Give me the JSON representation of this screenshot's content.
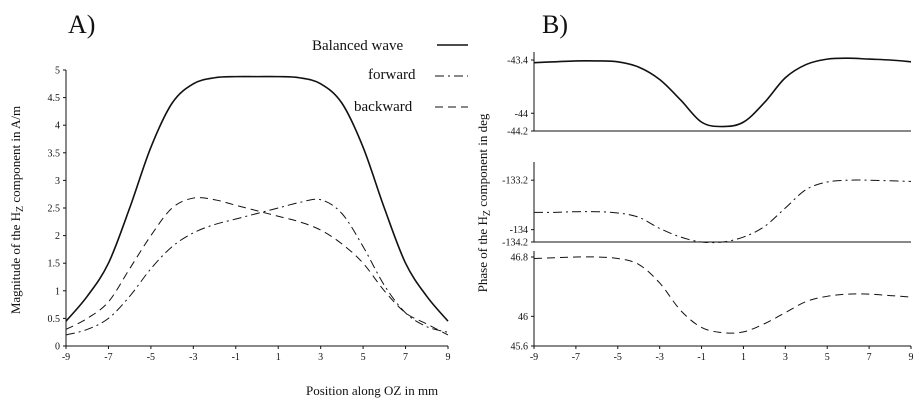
{
  "panel_labels": {
    "a": "A)",
    "b": "B)"
  },
  "legend": {
    "balanced": "Balanced wave",
    "forward": "forward",
    "backward": "backward"
  },
  "colors": {
    "ink": "#111111",
    "background": "#ffffff"
  },
  "chart_data": [
    {
      "type": "line",
      "panel": "A)",
      "title": "",
      "xlabel": "Position along OZ in mm",
      "ylabel": "Magnitude of the H_Z component in A/m",
      "ylabel_parts": {
        "pre": "Magnitude of the H",
        "sub": "Z",
        "post": " component in A/m"
      },
      "xlim": [
        -9,
        9
      ],
      "ylim": [
        0,
        5
      ],
      "xticks": [
        -9,
        -7,
        -5,
        -3,
        -1,
        1,
        3,
        5,
        7,
        9
      ],
      "yticks": [
        0,
        0.5,
        1,
        1.5,
        2,
        2.5,
        3,
        3.5,
        4,
        4.5,
        5
      ],
      "legend_position": "top-right",
      "series": [
        {
          "name": "Balanced wave",
          "style": "solid",
          "x": [
            -9,
            -8,
            -7,
            -6,
            -5,
            -4,
            -3,
            -2,
            -1,
            0,
            1,
            2,
            3,
            4,
            5,
            6,
            7,
            8,
            9
          ],
          "y": [
            0.45,
            0.9,
            1.5,
            2.5,
            3.6,
            4.4,
            4.75,
            4.86,
            4.88,
            4.88,
            4.88,
            4.86,
            4.75,
            4.4,
            3.6,
            2.5,
            1.5,
            0.9,
            0.45
          ]
        },
        {
          "name": "forward",
          "style": "dashdot",
          "x": [
            -9,
            -8,
            -7,
            -6,
            -5,
            -4,
            -3,
            -2,
            -1,
            0,
            1,
            2,
            3,
            4,
            5,
            6,
            7,
            8,
            9
          ],
          "y": [
            0.2,
            0.3,
            0.5,
            0.9,
            1.4,
            1.8,
            2.05,
            2.2,
            2.3,
            2.4,
            2.5,
            2.6,
            2.65,
            2.4,
            1.8,
            1.1,
            0.6,
            0.35,
            0.25
          ]
        },
        {
          "name": "backward",
          "style": "dashed",
          "x": [
            -9,
            -8,
            -7,
            -6,
            -5,
            -4,
            -3,
            -2,
            -1,
            0,
            1,
            2,
            3,
            4,
            5,
            6,
            7,
            8,
            9
          ],
          "y": [
            0.3,
            0.5,
            0.8,
            1.4,
            2.0,
            2.5,
            2.68,
            2.65,
            2.55,
            2.45,
            2.35,
            2.25,
            2.1,
            1.85,
            1.5,
            1.0,
            0.6,
            0.4,
            0.2
          ]
        }
      ]
    },
    {
      "type": "line",
      "panel": "B)",
      "subplot": "balanced",
      "xlim": [
        -9,
        9
      ],
      "ylim": [
        -44.2,
        -43.4
      ],
      "yticks": [
        -43.4,
        -44,
        -44.2
      ],
      "series": [
        {
          "name": "Balanced wave",
          "style": "solid",
          "x": [
            -9,
            -8,
            -7,
            -6,
            -5,
            -4,
            -3,
            -2,
            -1,
            0,
            1,
            2,
            3,
            4,
            5,
            6,
            7,
            8,
            9
          ],
          "y": [
            -43.43,
            -43.42,
            -43.41,
            -43.41,
            -43.42,
            -43.48,
            -43.62,
            -43.85,
            -44.1,
            -44.15,
            -44.1,
            -43.88,
            -43.6,
            -43.45,
            -43.39,
            -43.38,
            -43.39,
            -43.4,
            -43.42
          ]
        }
      ]
    },
    {
      "type": "line",
      "panel": "B)",
      "subplot": "forward",
      "xlim": [
        -9,
        9
      ],
      "ylim": [
        -134.2,
        -133.1
      ],
      "yticks": [
        -133.2,
        -134,
        -134.2
      ],
      "series": [
        {
          "name": "forward",
          "style": "dashdot",
          "x": [
            -9,
            -8,
            -7,
            -6,
            -5,
            -4,
            -3,
            -2,
            -1,
            0,
            1,
            2,
            3,
            4,
            5,
            6,
            7,
            8,
            9
          ],
          "y": [
            -133.72,
            -133.72,
            -133.71,
            -133.71,
            -133.73,
            -133.8,
            -133.98,
            -134.12,
            -134.2,
            -134.2,
            -134.12,
            -133.95,
            -133.65,
            -133.35,
            -133.23,
            -133.2,
            -133.2,
            -133.21,
            -133.22
          ]
        }
      ]
    },
    {
      "type": "line",
      "panel": "B)",
      "subplot": "backward",
      "xlabel": "",
      "xlim": [
        -9,
        9
      ],
      "ylim": [
        45.6,
        46.8
      ],
      "xticks": [
        -9,
        -7,
        -5,
        -3,
        -1,
        1,
        3,
        5,
        7,
        9
      ],
      "yticks": [
        46.8,
        46,
        45.6
      ],
      "series": [
        {
          "name": "backward",
          "style": "dashed",
          "x": [
            -9,
            -8,
            -7,
            -6,
            -5,
            -4,
            -3,
            -2,
            -1,
            0,
            1,
            2,
            3,
            4,
            5,
            6,
            7,
            8,
            9
          ],
          "y": [
            46.78,
            46.79,
            46.8,
            46.8,
            46.78,
            46.7,
            46.45,
            46.08,
            45.85,
            45.78,
            45.79,
            45.9,
            46.05,
            46.2,
            46.27,
            46.3,
            46.3,
            46.28,
            46.26
          ]
        }
      ]
    }
  ],
  "shared_ylabel_b": {
    "pre": "Phase of the H",
    "sub": "Z",
    "post": " component in deg"
  }
}
